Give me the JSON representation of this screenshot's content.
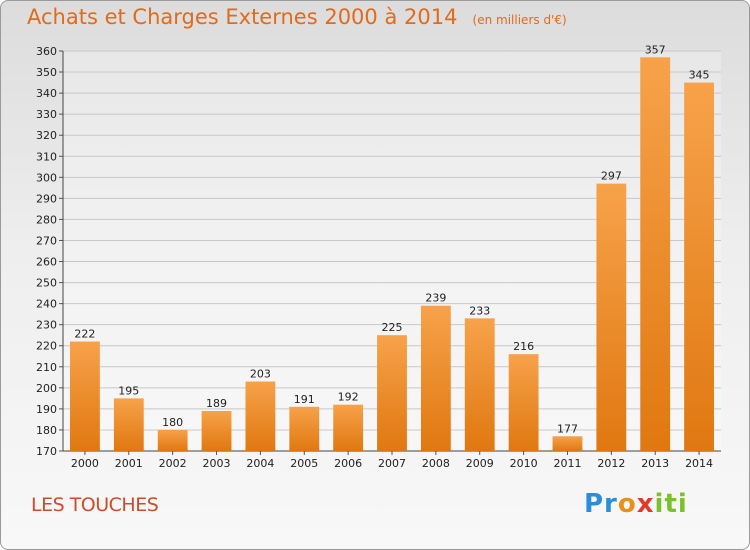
{
  "header": {
    "title": "Achats et Charges Externes 2000 à 2014",
    "subtitle": "(en milliers d'€)"
  },
  "footer": {
    "location": "LES TOUCHES",
    "logo_text": "Proxiti"
  },
  "colors": {
    "bar_light": "#f7a24a",
    "bar_dark": "#e07810",
    "title": "#e26a1a"
  },
  "chart_data": {
    "type": "bar",
    "title": "Achats et Charges Externes 2000 à 2014",
    "subtitle": "(en milliers d'€)",
    "xlabel": "",
    "ylabel": "",
    "categories": [
      "2000",
      "2001",
      "2002",
      "2003",
      "2004",
      "2005",
      "2006",
      "2007",
      "2008",
      "2009",
      "2010",
      "2011",
      "2012",
      "2013",
      "2014"
    ],
    "values": [
      222,
      195,
      180,
      189,
      203,
      191,
      192,
      225,
      239,
      233,
      216,
      177,
      297,
      357,
      345
    ],
    "ylim": [
      170,
      360
    ],
    "ytick_step": 10,
    "grid": true,
    "legend": "none"
  }
}
